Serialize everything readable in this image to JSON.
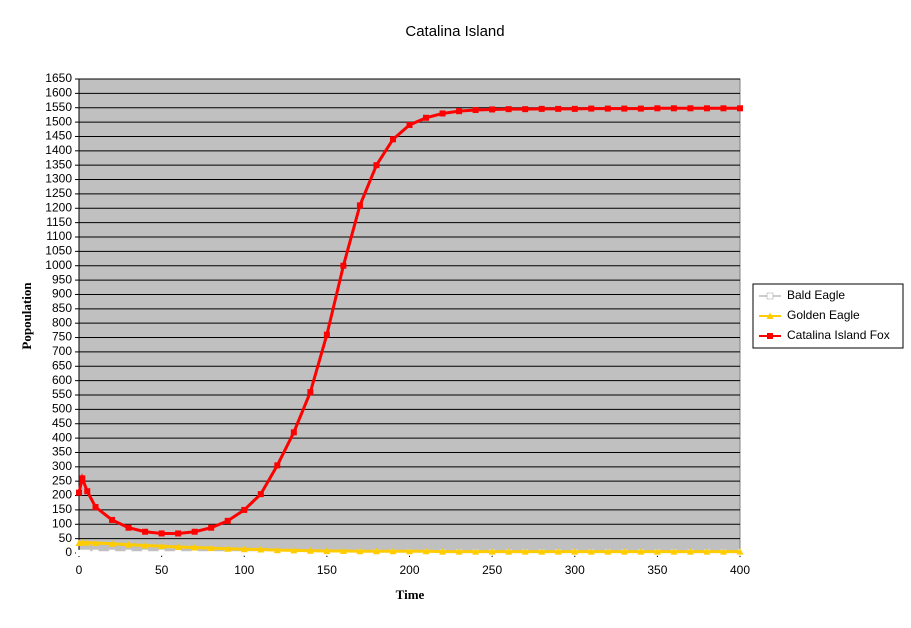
{
  "chart_data": {
    "type": "line",
    "title": "Catalina Island",
    "xlabel": "Time",
    "ylabel": "Popoulation",
    "x": [
      0,
      2,
      5,
      10,
      20,
      30,
      40,
      50,
      60,
      70,
      80,
      90,
      100,
      110,
      120,
      130,
      140,
      150,
      160,
      170,
      180,
      190,
      200,
      210,
      220,
      230,
      240,
      250,
      260,
      270,
      280,
      290,
      300,
      310,
      320,
      330,
      340,
      350,
      360,
      370,
      380,
      390,
      400
    ],
    "series": [
      {
        "name": "Bald Eagle",
        "color": "#ffffff",
        "marker": "square",
        "values": [
          0,
          1,
          1,
          1,
          1,
          1,
          1,
          1,
          1,
          1,
          1,
          1,
          1,
          1,
          1,
          1,
          1,
          1,
          1,
          1,
          1,
          1,
          1,
          1,
          1,
          1,
          1,
          1,
          1,
          1,
          1,
          1,
          1,
          1,
          1,
          1,
          1,
          1,
          1,
          1,
          1,
          1,
          1
        ]
      },
      {
        "name": "Golden Eagle",
        "color": "#ffcc00",
        "marker": "triangle",
        "values": [
          35,
          36,
          36,
          35,
          32,
          29,
          26,
          24,
          21,
          19,
          17,
          15,
          13,
          12,
          10,
          9,
          8,
          7,
          7,
          6,
          6,
          6,
          6,
          6,
          5,
          5,
          5,
          5,
          5,
          5,
          5,
          5,
          5,
          5,
          5,
          5,
          5,
          5,
          5,
          5,
          5,
          5,
          5
        ]
      },
      {
        "name": "Catalina Island Fox",
        "color": "#ff0000",
        "marker": "square",
        "values": [
          210,
          260,
          215,
          160,
          115,
          88,
          74,
          68,
          68,
          74,
          88,
          112,
          150,
          205,
          305,
          420,
          560,
          760,
          1000,
          1210,
          1350,
          1440,
          1490,
          1515,
          1530,
          1538,
          1542,
          1544,
          1545,
          1545,
          1546,
          1546,
          1546,
          1547,
          1547,
          1547,
          1547,
          1548,
          1548,
          1548,
          1548,
          1548,
          1548
        ]
      }
    ],
    "xlim": [
      0,
      400
    ],
    "xticks": [
      0,
      50,
      100,
      150,
      200,
      250,
      300,
      350,
      400
    ],
    "ylim": [
      0,
      1650
    ],
    "yticks": [
      0,
      50,
      100,
      150,
      200,
      250,
      300,
      350,
      400,
      450,
      500,
      550,
      600,
      650,
      700,
      750,
      800,
      850,
      900,
      950,
      1000,
      1050,
      1100,
      1150,
      1200,
      1250,
      1300,
      1350,
      1400,
      1450,
      1500,
      1550,
      1600,
      1650
    ],
    "grid": true,
    "legend": "right"
  }
}
